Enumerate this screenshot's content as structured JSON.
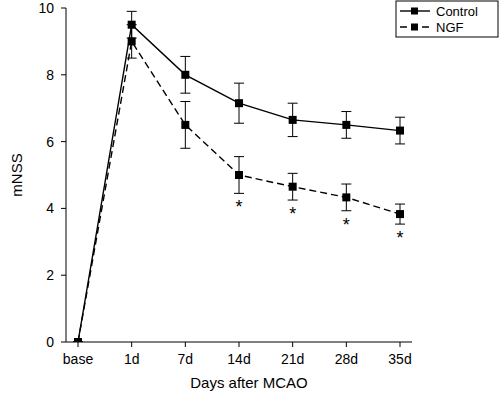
{
  "chart_data": {
    "type": "line",
    "x_label": "Days after MCAO",
    "y_label": "mNSS",
    "categories": [
      "base",
      "1d",
      "7d",
      "14d",
      "21d",
      "28d",
      "35d"
    ],
    "series": [
      {
        "name": "Control",
        "color": "#000000",
        "line_style": "solid",
        "marker": "square",
        "values": [
          0,
          9.5,
          8.0,
          7.15,
          6.65,
          6.5,
          6.33
        ],
        "errors": [
          0,
          0.4,
          0.55,
          0.6,
          0.5,
          0.4,
          0.4
        ]
      },
      {
        "name": "NGF",
        "color": "#000000",
        "line_style": "dashed",
        "marker": "square",
        "values": [
          0,
          9.0,
          6.5,
          5.0,
          4.65,
          4.33,
          3.83
        ],
        "errors": [
          0,
          0.5,
          0.7,
          0.55,
          0.4,
          0.4,
          0.3
        ]
      }
    ],
    "annotations": [
      {
        "text": "*",
        "category": "14d",
        "series": "NGF"
      },
      {
        "text": "*",
        "category": "21d",
        "series": "NGF"
      },
      {
        "text": "*",
        "category": "28d",
        "series": "NGF"
      },
      {
        "text": "*",
        "category": "35d",
        "series": "NGF"
      }
    ],
    "ylim": [
      0,
      10
    ],
    "yticks": [
      0,
      2,
      4,
      6,
      8,
      10
    ],
    "grid": false,
    "legend": "top-right"
  }
}
